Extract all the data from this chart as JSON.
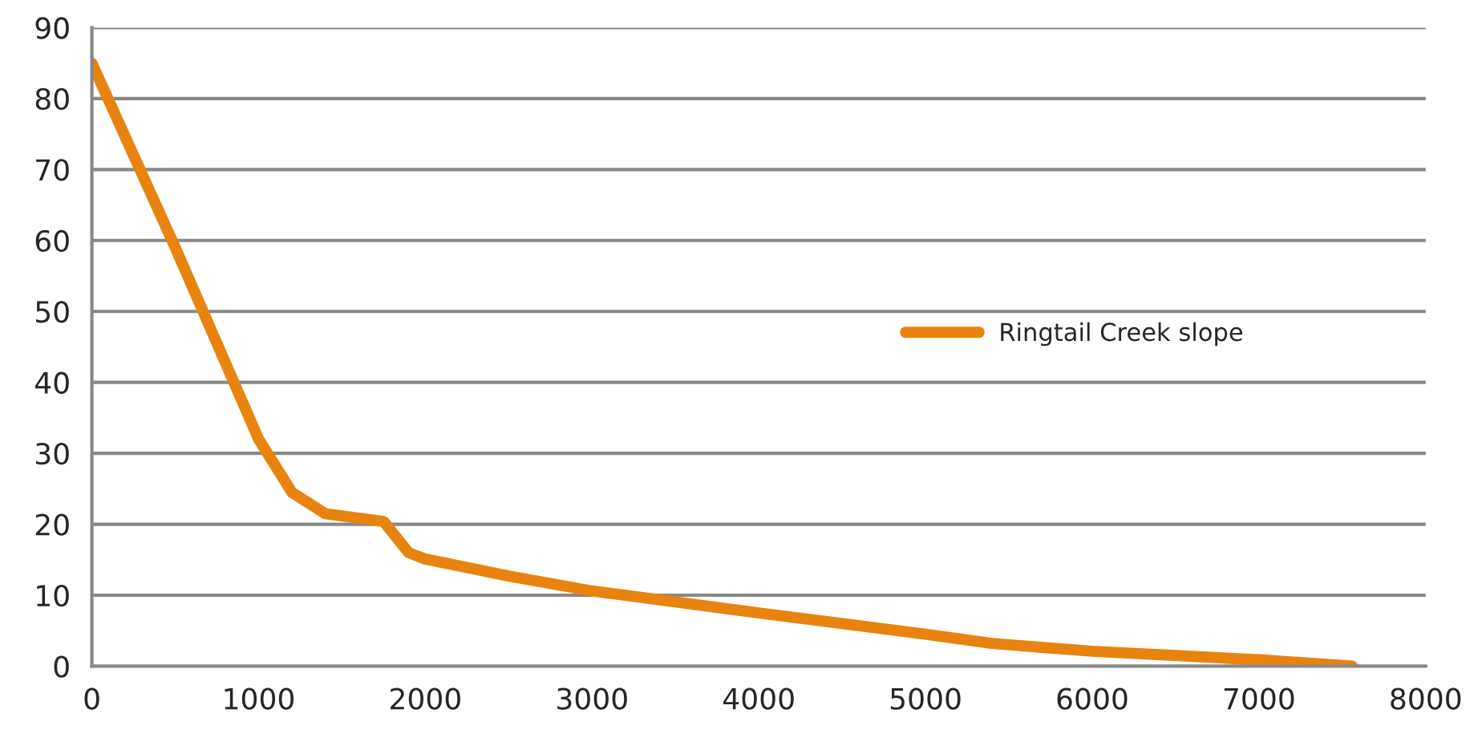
{
  "chart_data": {
    "type": "line",
    "x": [
      0,
      500,
      1000,
      1200,
      1400,
      1750,
      1900,
      2000,
      2500,
      3000,
      4000,
      5000,
      5400,
      6000,
      7000,
      7560
    ],
    "series": [
      {
        "name": "Ringtail Creek slope",
        "color": "#e8830f",
        "values": [
          85,
          59,
          32,
          24.5,
          21.5,
          20.4,
          16,
          15.1,
          12.7,
          10.6,
          7.5,
          4.5,
          3.2,
          2.1,
          0.9,
          0
        ]
      }
    ],
    "xlim": [
      0,
      8000
    ],
    "xticks": [
      0,
      1000,
      2000,
      3000,
      4000,
      5000,
      6000,
      7000,
      8000
    ],
    "ylim": [
      0,
      90
    ],
    "yticks": [
      0,
      10,
      20,
      30,
      40,
      50,
      60,
      70,
      80,
      90
    ],
    "grid": "y",
    "legend": "right",
    "marker": "none",
    "line_style": "solid"
  }
}
